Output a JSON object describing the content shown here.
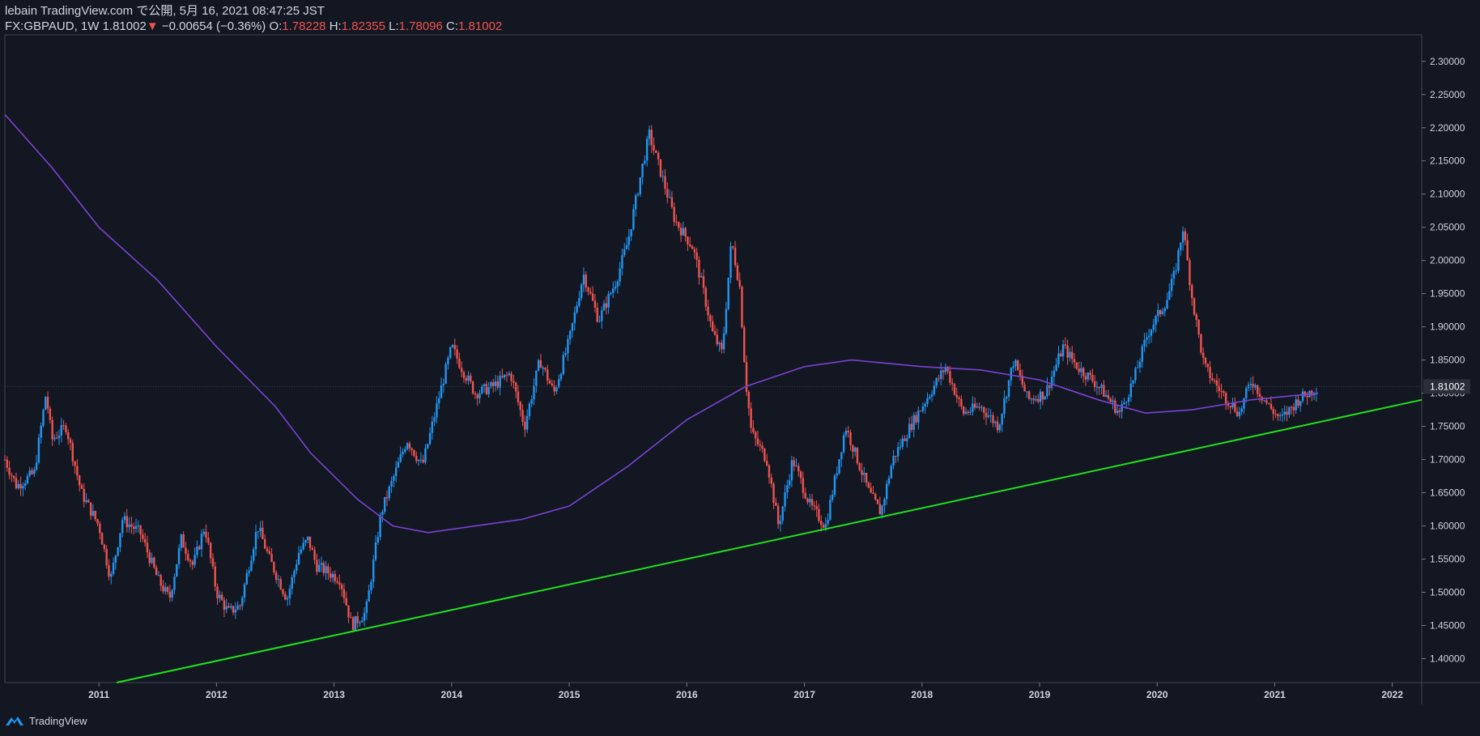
{
  "header": {
    "publish_line": "lebain TradingView.com で公開, 5月 16, 2021 08:47:25 JST",
    "symbol": "FX:GBPAUD, 1W",
    "last": "1.81002",
    "change_arrow": "▼",
    "change": "−0.00654 (−0.36%)",
    "open_label": "O:",
    "open": "1.78228",
    "high_label": "H:",
    "high": "1.82355",
    "low_label": "L:",
    "low": "1.78096",
    "close_label": "C:",
    "close": "1.81002"
  },
  "footer": {
    "brand": "TradingView"
  },
  "colors": {
    "background": "#131722",
    "up": "#2196f3",
    "down": "#ef5350",
    "ma": "#7b42d4",
    "trendline": "#22e01e",
    "axis_text": "#d1d4dc",
    "price_tag_bg": "#2a2e39"
  },
  "chart_data": {
    "type": "candlestick",
    "symbol": "FX:GBPAUD",
    "timeframe": "1W",
    "x_ticks": [
      "2011",
      "2012",
      "2013",
      "2014",
      "2015",
      "2016",
      "2017",
      "2018",
      "2019",
      "2020",
      "2021",
      "2022"
    ],
    "x_tick_values": [
      2011,
      2012,
      2013,
      2014,
      2015,
      2016,
      2017,
      2018,
      2019,
      2020,
      2021,
      2022
    ],
    "y_ticks": [
      "1.40000",
      "1.45000",
      "1.50000",
      "1.55000",
      "1.60000",
      "1.65000",
      "1.70000",
      "1.75000",
      "1.80000",
      "1.85000",
      "1.90000",
      "1.95000",
      "2.00000",
      "2.05000",
      "2.10000",
      "2.15000",
      "2.20000",
      "2.25000",
      "2.30000"
    ],
    "y_tick_values": [
      1.4,
      1.45,
      1.5,
      1.55,
      1.6,
      1.65,
      1.7,
      1.75,
      1.8,
      1.85,
      1.9,
      1.95,
      2.0,
      2.05,
      2.1,
      2.15,
      2.2,
      2.25,
      2.3
    ],
    "xlim": [
      2010.2,
      2022.25
    ],
    "ylim": [
      1.364,
      2.34
    ],
    "last_price": 1.81002,
    "last_price_label": "1.81002",
    "price_path": [
      [
        2010.2,
        1.7
      ],
      [
        2010.3,
        1.66
      ],
      [
        2010.45,
        1.68
      ],
      [
        2010.55,
        1.8
      ],
      [
        2010.6,
        1.73
      ],
      [
        2010.72,
        1.75
      ],
      [
        2010.85,
        1.65
      ],
      [
        2011.0,
        1.6
      ],
      [
        2011.1,
        1.52
      ],
      [
        2011.2,
        1.61
      ],
      [
        2011.35,
        1.59
      ],
      [
        2011.5,
        1.52
      ],
      [
        2011.6,
        1.49
      ],
      [
        2011.7,
        1.58
      ],
      [
        2011.8,
        1.54
      ],
      [
        2011.9,
        1.6
      ],
      [
        2012.0,
        1.5
      ],
      [
        2012.1,
        1.47
      ],
      [
        2012.2,
        1.48
      ],
      [
        2012.35,
        1.6
      ],
      [
        2012.45,
        1.55
      ],
      [
        2012.6,
        1.49
      ],
      [
        2012.7,
        1.56
      ],
      [
        2012.78,
        1.58
      ],
      [
        2012.85,
        1.54
      ],
      [
        2012.95,
        1.53
      ],
      [
        2013.05,
        1.52
      ],
      [
        2013.15,
        1.45
      ],
      [
        2013.27,
        1.47
      ],
      [
        2013.4,
        1.62
      ],
      [
        2013.5,
        1.67
      ],
      [
        2013.62,
        1.73
      ],
      [
        2013.75,
        1.69
      ],
      [
        2013.9,
        1.8
      ],
      [
        2014.0,
        1.87
      ],
      [
        2014.08,
        1.84
      ],
      [
        2014.2,
        1.8
      ],
      [
        2014.35,
        1.81
      ],
      [
        2014.5,
        1.83
      ],
      [
        2014.62,
        1.75
      ],
      [
        2014.75,
        1.85
      ],
      [
        2014.87,
        1.8
      ],
      [
        2015.0,
        1.88
      ],
      [
        2015.12,
        1.98
      ],
      [
        2015.25,
        1.91
      ],
      [
        2015.4,
        1.97
      ],
      [
        2015.5,
        2.03
      ],
      [
        2015.62,
        2.14
      ],
      [
        2015.68,
        2.19
      ],
      [
        2015.8,
        2.12
      ],
      [
        2015.9,
        2.06
      ],
      [
        2016.05,
        2.02
      ],
      [
        2016.12,
        1.97
      ],
      [
        2016.22,
        1.89
      ],
      [
        2016.3,
        1.86
      ],
      [
        2016.38,
        2.03
      ],
      [
        2016.45,
        1.96
      ],
      [
        2016.5,
        1.82
      ],
      [
        2016.55,
        1.74
      ],
      [
        2016.68,
        1.7
      ],
      [
        2016.78,
        1.6
      ],
      [
        2016.9,
        1.7
      ],
      [
        2017.05,
        1.63
      ],
      [
        2017.18,
        1.6
      ],
      [
        2017.35,
        1.75
      ],
      [
        2017.45,
        1.7
      ],
      [
        2017.55,
        1.65
      ],
      [
        2017.65,
        1.62
      ],
      [
        2017.75,
        1.7
      ],
      [
        2017.9,
        1.75
      ],
      [
        2018.0,
        1.78
      ],
      [
        2018.2,
        1.84
      ],
      [
        2018.35,
        1.77
      ],
      [
        2018.5,
        1.78
      ],
      [
        2018.65,
        1.75
      ],
      [
        2018.78,
        1.85
      ],
      [
        2018.9,
        1.79
      ],
      [
        2019.05,
        1.8
      ],
      [
        2019.2,
        1.87
      ],
      [
        2019.32,
        1.84
      ],
      [
        2019.45,
        1.82
      ],
      [
        2019.55,
        1.8
      ],
      [
        2019.68,
        1.77
      ],
      [
        2019.8,
        1.82
      ],
      [
        2019.92,
        1.89
      ],
      [
        2020.08,
        1.94
      ],
      [
        2020.15,
        1.98
      ],
      [
        2020.22,
        2.05
      ],
      [
        2020.3,
        1.94
      ],
      [
        2020.4,
        1.84
      ],
      [
        2020.55,
        1.8
      ],
      [
        2020.7,
        1.77
      ],
      [
        2020.8,
        1.82
      ],
      [
        2020.95,
        1.78
      ],
      [
        2021.05,
        1.76
      ],
      [
        2021.2,
        1.79
      ],
      [
        2021.37,
        1.81
      ]
    ],
    "ma_curve": [
      [
        2010.2,
        2.22
      ],
      [
        2010.6,
        2.14
      ],
      [
        2011.0,
        2.05
      ],
      [
        2011.5,
        1.97
      ],
      [
        2012.0,
        1.87
      ],
      [
        2012.5,
        1.78
      ],
      [
        2012.8,
        1.71
      ],
      [
        2013.2,
        1.64
      ],
      [
        2013.5,
        1.6
      ],
      [
        2013.8,
        1.59
      ],
      [
        2014.2,
        1.6
      ],
      [
        2014.6,
        1.61
      ],
      [
        2015.0,
        1.63
      ],
      [
        2015.5,
        1.69
      ],
      [
        2016.0,
        1.76
      ],
      [
        2016.5,
        1.81
      ],
      [
        2017.0,
        1.84
      ],
      [
        2017.4,
        1.85
      ],
      [
        2018.0,
        1.84
      ],
      [
        2018.5,
        1.835
      ],
      [
        2019.0,
        1.82
      ],
      [
        2019.5,
        1.79
      ],
      [
        2019.9,
        1.77
      ],
      [
        2020.3,
        1.775
      ],
      [
        2020.8,
        1.79
      ],
      [
        2021.37,
        1.8
      ]
    ],
    "trendline": {
      "start": [
        2011.15,
        1.364
      ],
      "end": [
        2022.25,
        1.79
      ]
    },
    "grid": false,
    "legend": "none"
  }
}
